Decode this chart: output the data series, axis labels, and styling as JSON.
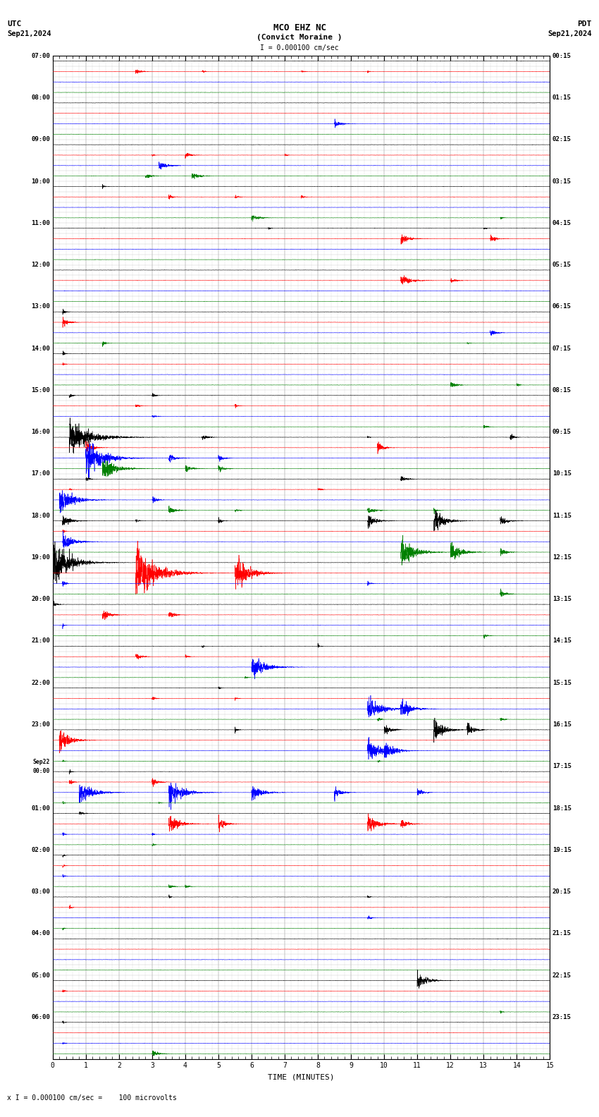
{
  "title_line1": "MCO EHZ NC",
  "title_line2": "(Convict Moraine )",
  "scale_label": "I = 0.000100 cm/sec",
  "left_header": "UTC",
  "left_date": "Sep21,2024",
  "right_header": "PDT",
  "right_date": "Sep21,2024",
  "bottom_label": "TIME (MINUTES)",
  "bottom_note": "x I = 0.000100 cm/sec =    100 microvolts",
  "utc_labels": [
    "07:00",
    "08:00",
    "09:00",
    "10:00",
    "11:00",
    "12:00",
    "13:00",
    "14:00",
    "15:00",
    "16:00",
    "17:00",
    "18:00",
    "19:00",
    "20:00",
    "21:00",
    "22:00",
    "23:00",
    "Sep22\n00:00",
    "01:00",
    "02:00",
    "03:00",
    "04:00",
    "05:00",
    "06:00"
  ],
  "pdt_labels": [
    "00:15",
    "01:15",
    "02:15",
    "03:15",
    "04:15",
    "05:15",
    "06:15",
    "07:15",
    "08:15",
    "09:15",
    "10:15",
    "11:15",
    "12:15",
    "13:15",
    "14:15",
    "15:15",
    "16:15",
    "17:15",
    "18:15",
    "19:15",
    "20:15",
    "21:15",
    "22:15",
    "23:15"
  ],
  "num_hours": 24,
  "traces_per_hour": 4,
  "minutes": 15,
  "colors_cycle": [
    "black",
    "red",
    "blue",
    "green"
  ],
  "background_color": "white",
  "font_family": "monospace",
  "base_noise": 0.025,
  "amp_scale": 0.38
}
